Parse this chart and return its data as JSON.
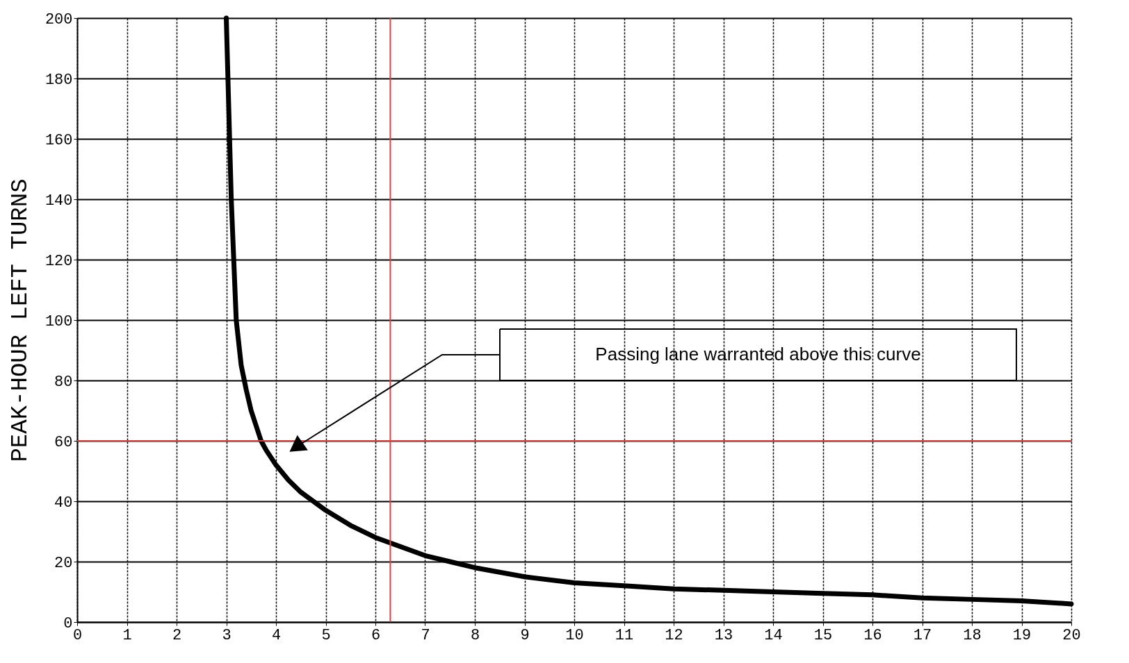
{
  "chart_data": {
    "type": "line",
    "ylabel": "PEAK-HOUR LEFT TURNS",
    "x": [
      3.0,
      3.05,
      3.1,
      3.15,
      3.2,
      3.3,
      3.4,
      3.5,
      3.6,
      3.7,
      3.8,
      4.0,
      4.25,
      4.5,
      5.0,
      5.5,
      6.0,
      6.5,
      7.0,
      7.5,
      8.0,
      9.0,
      10.0,
      11.0,
      12.0,
      13.0,
      14.0,
      15.0,
      16.0,
      17.0,
      18.0,
      19.0,
      20.0
    ],
    "series": [
      {
        "color": "#000000",
        "values": [
          200,
          170,
          140,
          120,
          100,
          85,
          77,
          70,
          65,
          60,
          57,
          52,
          47,
          43,
          37,
          32,
          28,
          25,
          22,
          20,
          18,
          15,
          13,
          12,
          11,
          10.5,
          10,
          9.5,
          9,
          8,
          7.5,
          7,
          6
        ]
      }
    ],
    "xlim": [
      0,
      20
    ],
    "xticks": [
      0,
      1,
      2,
      3,
      4,
      5,
      6,
      7,
      8,
      9,
      10,
      11,
      12,
      13,
      14,
      15,
      16,
      17,
      18,
      19,
      20
    ],
    "ylim": [
      0,
      200
    ],
    "yticks": [
      0,
      20,
      40,
      60,
      80,
      100,
      120,
      140,
      160,
      180,
      200
    ],
    "grid": true,
    "marker": "none",
    "line_style": "solid",
    "ref_lines": [
      {
        "axis": "y",
        "value": 60,
        "color": "#e04040"
      },
      {
        "axis": "x",
        "value": 6.3,
        "color": "#e04040"
      }
    ],
    "annotations": [
      "Passing lane warranted above this curve"
    ]
  }
}
